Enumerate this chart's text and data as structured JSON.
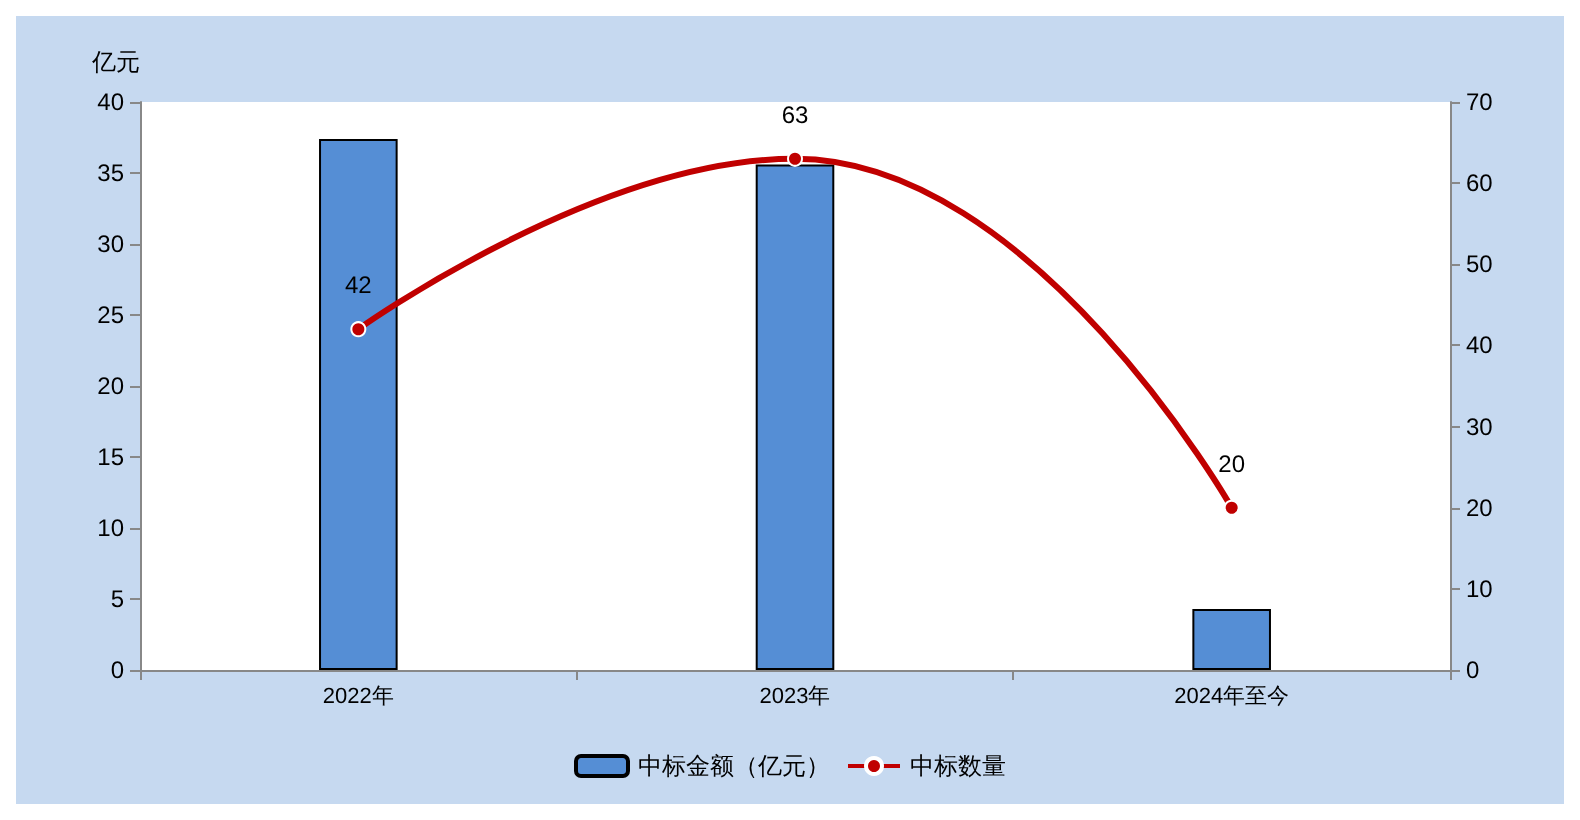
{
  "chart_data": {
    "type": "bar",
    "ylabel": "亿元",
    "categories": [
      "2022年",
      "2023年",
      "2024年至今"
    ],
    "series": [
      {
        "name": "中标金额（亿元）",
        "color": "#558ed5",
        "values": [
          37.4,
          35.6,
          4.3
        ]
      },
      {
        "name": "中标数量",
        "type": "line",
        "axis": "y2",
        "color": "#c00000",
        "values": [
          42,
          63,
          20
        ],
        "value_labels": [
          "42",
          "63",
          "20"
        ]
      }
    ],
    "ylim": [
      0,
      40
    ],
    "yticks": [
      0,
      5,
      10,
      15,
      20,
      25,
      30,
      35,
      40
    ],
    "y2lim": [
      0,
      70
    ],
    "y2ticks": [
      0,
      10,
      20,
      30,
      40,
      50,
      60,
      70
    ],
    "grid": false,
    "legend": "bottom",
    "marker": "circle"
  }
}
